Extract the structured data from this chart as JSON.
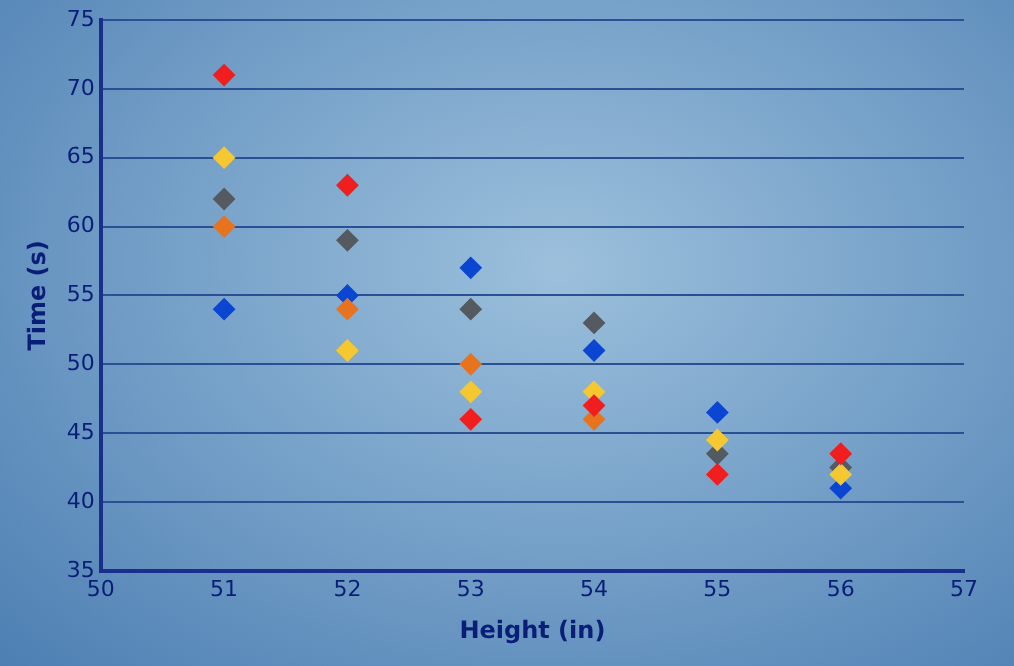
{
  "chart_data": {
    "type": "scatter",
    "xlabel": "Height (in)",
    "ylabel": "Time (s)",
    "x": [
      51,
      52,
      53,
      54,
      55,
      56
    ],
    "series": [
      {
        "color": "#f01e1e",
        "values": [
          71,
          63,
          46,
          47,
          42,
          43.5
        ]
      },
      {
        "color": "#f5c832",
        "values": [
          65,
          51,
          48,
          48,
          44.5,
          42
        ]
      },
      {
        "color": "#555a60",
        "values": [
          62,
          59,
          54,
          53,
          43.5,
          42.5
        ]
      },
      {
        "color": "#e8731e",
        "values": [
          60,
          54,
          50,
          46,
          null,
          null
        ]
      },
      {
        "color": "#0a46d2",
        "values": [
          54,
          55,
          57,
          51,
          46.5,
          41
        ]
      }
    ],
    "xlim": [
      50,
      57
    ],
    "xticks": [
      50,
      51,
      52,
      53,
      54,
      55,
      56,
      57
    ],
    "ylim": [
      35,
      75
    ],
    "yticks": [
      35,
      40,
      45,
      50,
      55,
      60,
      65,
      70,
      75
    ],
    "grid": "y",
    "legend": false,
    "marker": "diamond"
  }
}
